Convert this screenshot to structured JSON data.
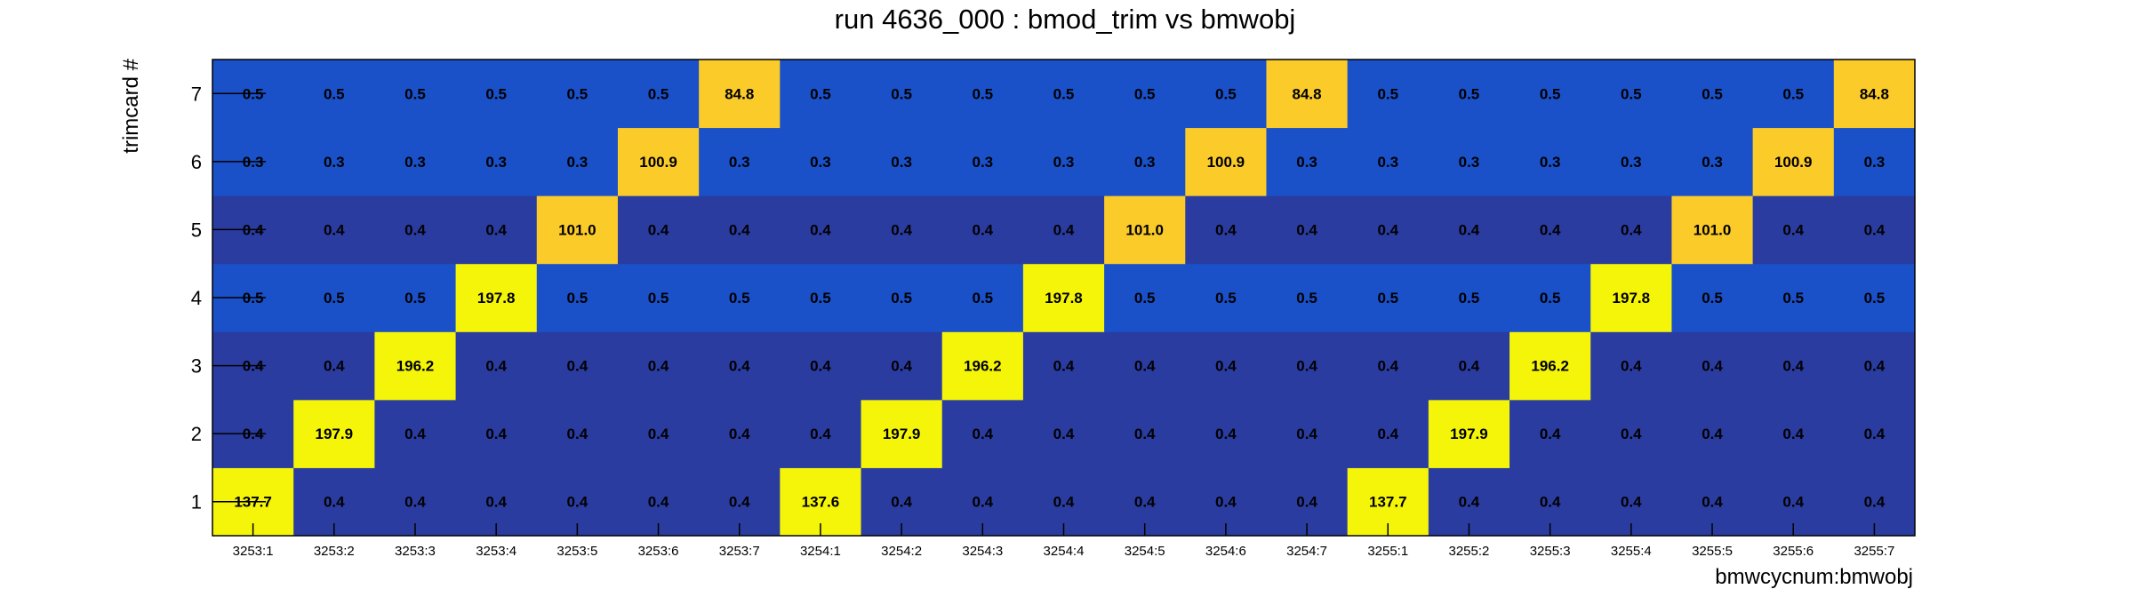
{
  "chart_data": {
    "type": "heatmap",
    "title": "run 4636_000 : bmod_trim vs bmwobj",
    "xlabel": "bmwcycnum:bmwobj",
    "ylabel": "trimcard #",
    "x_categories": [
      "3253:1",
      "3253:2",
      "3253:3",
      "3253:4",
      "3253:5",
      "3253:6",
      "3253:7",
      "3254:1",
      "3254:2",
      "3254:3",
      "3254:4",
      "3254:5",
      "3254:6",
      "3254:7",
      "3255:1",
      "3255:2",
      "3255:3",
      "3255:4",
      "3255:5",
      "3255:6",
      "3255:7"
    ],
    "y_categories": [
      "1",
      "2",
      "3",
      "4",
      "5",
      "6",
      "7"
    ],
    "values": [
      [
        "137.7",
        "0.4",
        "0.4",
        "0.4",
        "0.4",
        "0.4",
        "0.4",
        "137.6",
        "0.4",
        "0.4",
        "0.4",
        "0.4",
        "0.4",
        "0.4",
        "137.7",
        "0.4",
        "0.4",
        "0.4",
        "0.4",
        "0.4",
        "0.4"
      ],
      [
        "0.4",
        "197.9",
        "0.4",
        "0.4",
        "0.4",
        "0.4",
        "0.4",
        "0.4",
        "197.9",
        "0.4",
        "0.4",
        "0.4",
        "0.4",
        "0.4",
        "0.4",
        "197.9",
        "0.4",
        "0.4",
        "0.4",
        "0.4",
        "0.4"
      ],
      [
        "0.4",
        "0.4",
        "196.2",
        "0.4",
        "0.4",
        "0.4",
        "0.4",
        "0.4",
        "0.4",
        "196.2",
        "0.4",
        "0.4",
        "0.4",
        "0.4",
        "0.4",
        "0.4",
        "196.2",
        "0.4",
        "0.4",
        "0.4",
        "0.4"
      ],
      [
        "0.5",
        "0.5",
        "0.5",
        "197.8",
        "0.5",
        "0.5",
        "0.5",
        "0.5",
        "0.5",
        "0.5",
        "197.8",
        "0.5",
        "0.5",
        "0.5",
        "0.5",
        "0.5",
        "0.5",
        "197.8",
        "0.5",
        "0.5",
        "0.5"
      ],
      [
        "0.4",
        "0.4",
        "0.4",
        "0.4",
        "101.0",
        "0.4",
        "0.4",
        "0.4",
        "0.4",
        "0.4",
        "0.4",
        "101.0",
        "0.4",
        "0.4",
        "0.4",
        "0.4",
        "0.4",
        "0.4",
        "101.0",
        "0.4",
        "0.4"
      ],
      [
        "0.3",
        "0.3",
        "0.3",
        "0.3",
        "0.3",
        "100.9",
        "0.3",
        "0.3",
        "0.3",
        "0.3",
        "0.3",
        "0.3",
        "100.9",
        "0.3",
        "0.3",
        "0.3",
        "0.3",
        "0.3",
        "0.3",
        "100.9",
        "0.3"
      ],
      [
        "0.5",
        "0.5",
        "0.5",
        "0.5",
        "0.5",
        "0.5",
        "84.8",
        "0.5",
        "0.5",
        "0.5",
        "0.5",
        "0.5",
        "0.5",
        "84.8",
        "0.5",
        "0.5",
        "0.5",
        "0.5",
        "0.5",
        "0.5",
        "84.8"
      ]
    ],
    "colors": {
      "low_light": "#1a50c8",
      "low_dark": "#2a3ca0",
      "high_yellow": "#f5f50a",
      "high_orange": "#fbcb2a"
    }
  }
}
